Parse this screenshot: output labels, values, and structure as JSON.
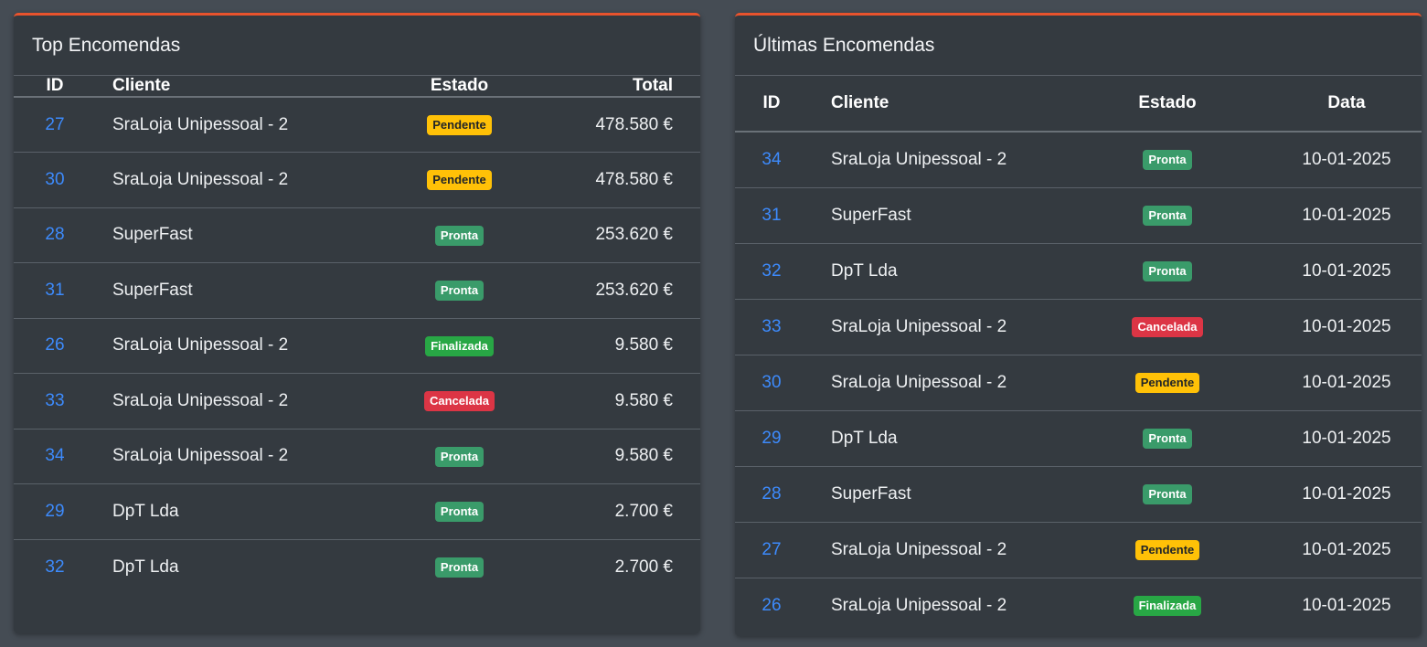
{
  "top_orders": {
    "title": "Top Encomendas",
    "headers": {
      "id": "ID",
      "cliente": "Cliente",
      "estado": "Estado",
      "total": "Total"
    },
    "rows": [
      {
        "id": "27",
        "cliente": "SraLoja Unipessoal - 2",
        "estado": "Pendente",
        "status_key": "pendente",
        "total": "478.580 €"
      },
      {
        "id": "30",
        "cliente": "SraLoja Unipessoal - 2",
        "estado": "Pendente",
        "status_key": "pendente",
        "total": "478.580 €"
      },
      {
        "id": "28",
        "cliente": "SuperFast",
        "estado": "Pronta",
        "status_key": "pronta",
        "total": "253.620 €"
      },
      {
        "id": "31",
        "cliente": "SuperFast",
        "estado": "Pronta",
        "status_key": "pronta",
        "total": "253.620 €"
      },
      {
        "id": "26",
        "cliente": "SraLoja Unipessoal - 2",
        "estado": "Finalizada",
        "status_key": "finalizada",
        "total": "9.580 €"
      },
      {
        "id": "33",
        "cliente": "SraLoja Unipessoal - 2",
        "estado": "Cancelada",
        "status_key": "cancelada",
        "total": "9.580 €"
      },
      {
        "id": "34",
        "cliente": "SraLoja Unipessoal - 2",
        "estado": "Pronta",
        "status_key": "pronta",
        "total": "9.580 €"
      },
      {
        "id": "29",
        "cliente": "DpT Lda",
        "estado": "Pronta",
        "status_key": "pronta",
        "total": "2.700 €"
      },
      {
        "id": "32",
        "cliente": "DpT Lda",
        "estado": "Pronta",
        "status_key": "pronta",
        "total": "2.700 €"
      }
    ]
  },
  "latest_orders": {
    "title": "Últimas Encomendas",
    "headers": {
      "id": "ID",
      "cliente": "Cliente",
      "estado": "Estado",
      "data": "Data"
    },
    "rows": [
      {
        "id": "34",
        "cliente": "SraLoja Unipessoal - 2",
        "estado": "Pronta",
        "status_key": "pronta",
        "data": "10-01-2025"
      },
      {
        "id": "31",
        "cliente": "SuperFast",
        "estado": "Pronta",
        "status_key": "pronta",
        "data": "10-01-2025"
      },
      {
        "id": "32",
        "cliente": "DpT Lda",
        "estado": "Pronta",
        "status_key": "pronta",
        "data": "10-01-2025"
      },
      {
        "id": "33",
        "cliente": "SraLoja Unipessoal - 2",
        "estado": "Cancelada",
        "status_key": "cancelada",
        "data": "10-01-2025"
      },
      {
        "id": "30",
        "cliente": "SraLoja Unipessoal - 2",
        "estado": "Pendente",
        "status_key": "pendente",
        "data": "10-01-2025"
      },
      {
        "id": "29",
        "cliente": "DpT Lda",
        "estado": "Pronta",
        "status_key": "pronta",
        "data": "10-01-2025"
      },
      {
        "id": "28",
        "cliente": "SuperFast",
        "estado": "Pronta",
        "status_key": "pronta",
        "data": "10-01-2025"
      },
      {
        "id": "27",
        "cliente": "SraLoja Unipessoal - 2",
        "estado": "Pendente",
        "status_key": "pendente",
        "data": "10-01-2025"
      },
      {
        "id": "26",
        "cliente": "SraLoja Unipessoal - 2",
        "estado": "Finalizada",
        "status_key": "finalizada",
        "data": "10-01-2025"
      }
    ]
  },
  "colors": {
    "accent": "#e8532d",
    "link": "#3d8bfd",
    "pendente": "#ffc107",
    "pronta": "#3a9b6a",
    "finalizada": "#28a745",
    "cancelada": "#dc3545"
  }
}
